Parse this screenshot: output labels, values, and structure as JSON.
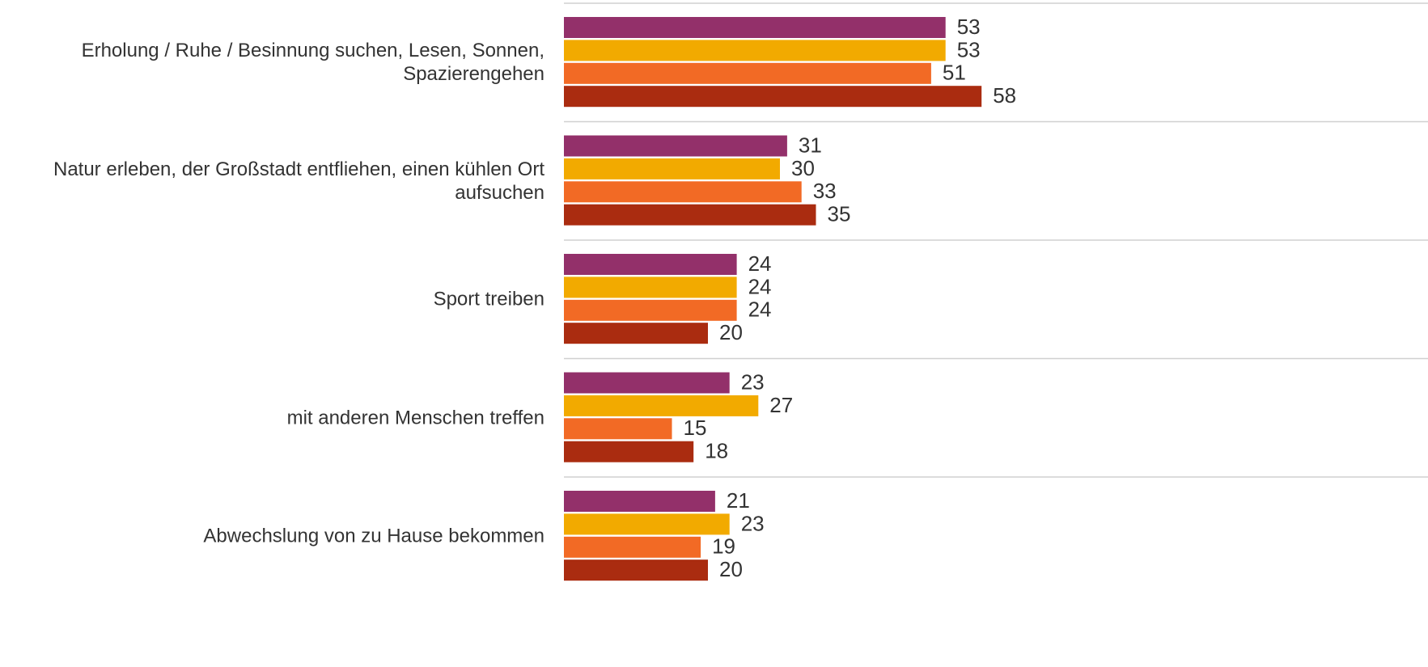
{
  "chart_data": {
    "type": "bar",
    "orientation": "horizontal",
    "categories": [
      "Erholung / Ruhe / Besinnung suchen, Lesen, Sonnen, Spazierengehen",
      "Natur erleben, der Großstadt entfliehen, einen kühlen Ort aufsuchen",
      "Sport treiben",
      "mit anderen Menschen treffen",
      "Abwechslung von zu Hause bekommen"
    ],
    "series": [
      {
        "color": "#93306a",
        "values": [
          53,
          31,
          24,
          23,
          21
        ]
      },
      {
        "color": "#f2aa00",
        "values": [
          53,
          30,
          24,
          27,
          23
        ]
      },
      {
        "color": "#f26a25",
        "values": [
          51,
          33,
          24,
          15,
          19
        ]
      },
      {
        "color": "#aa2c10",
        "values": [
          58,
          35,
          20,
          18,
          20
        ]
      }
    ],
    "xlim": [
      0,
      120
    ]
  }
}
